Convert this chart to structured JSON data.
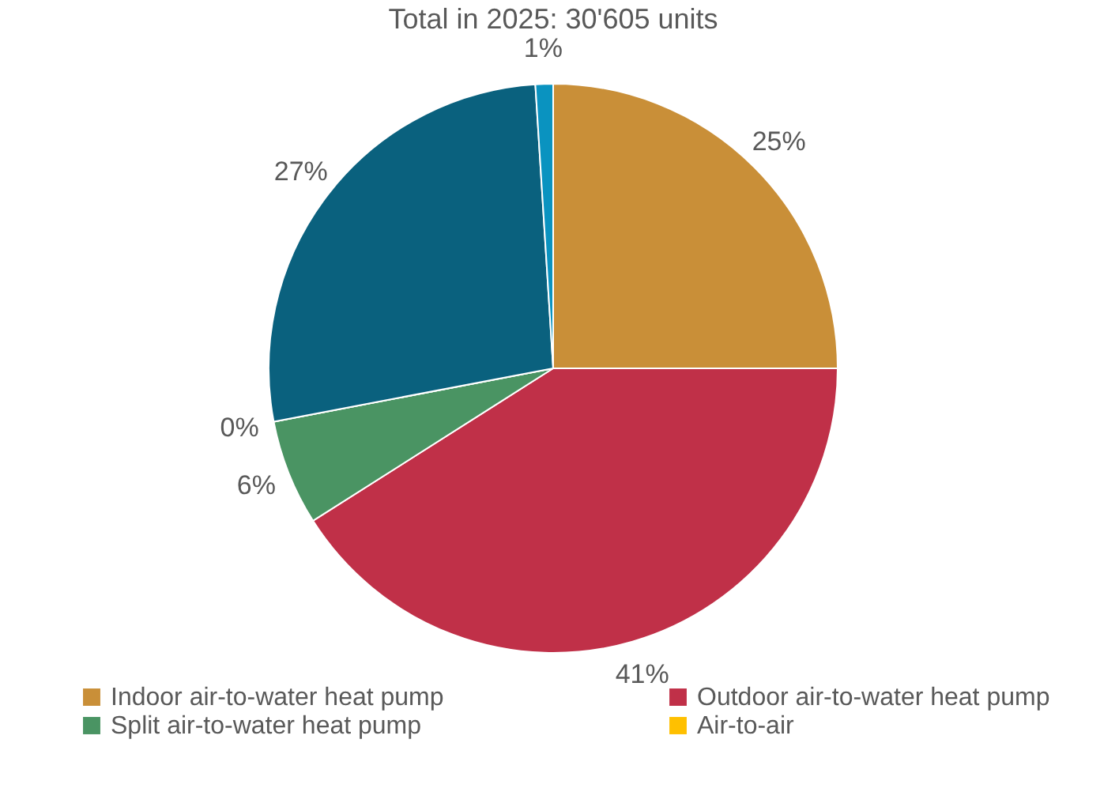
{
  "chart_data": {
    "type": "pie",
    "title": "Total in 2025: 30'605 units",
    "categories": [
      "Indoor air-to-water heat pump",
      "Outdoor air-to-water heat pump",
      "Split air-to-water heat pump",
      "Air-to-air",
      null,
      null
    ],
    "values": [
      25,
      41,
      6,
      0,
      27,
      1
    ],
    "colors": [
      "#c98f38",
      "#c03048",
      "#4a9463",
      "#ffc000",
      "#0a617e",
      "#0a93c0"
    ],
    "value_labels": [
      "25%",
      "41%",
      "6%",
      "0%",
      "27%",
      "1%"
    ],
    "legend": "bottom"
  }
}
